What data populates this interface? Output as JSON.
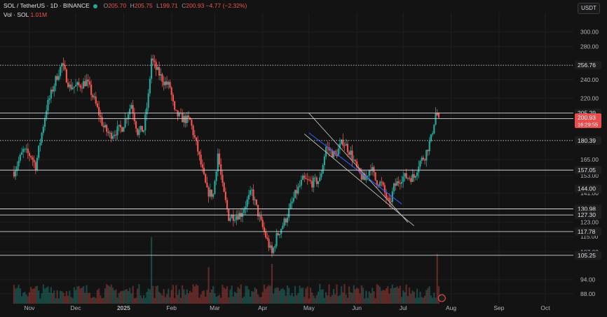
{
  "header": {
    "symbol": "SOL / TetherUS · 1D · BINANCE",
    "o_label": "O",
    "o_value": "205.70",
    "h_label": "H",
    "h_value": "205.75",
    "l_label": "L",
    "l_value": "199.71",
    "c_label": "C",
    "c_value": "200.93",
    "change": "−4.77 (−2.32%)",
    "vol_label": "Vol · SOL",
    "vol_value": "1.01M",
    "currency": "USDT"
  },
  "colors": {
    "background": "#131313",
    "up": "#26a69a",
    "down": "#ef5350",
    "grid": "#1f1f1f",
    "axis_text": "#b2b5be",
    "hline": "#d1d4dc",
    "badge_bg": "#1e1e1e",
    "price_badge_bg": "#e94c4c",
    "channel": "#bfbfbf",
    "midline": "#2962ff"
  },
  "chart_data": {
    "type": "candlestick",
    "y_scale": "log",
    "ylim": [
      84,
      320
    ],
    "x_ticks": [
      "Nov",
      "Dec",
      "2025",
      "Feb",
      "Mar",
      "Apr",
      "May",
      "Jun",
      "Jul",
      "Aug",
      "Sep",
      "Oct"
    ],
    "x_tick_dates": [
      "2024-11-01",
      "2024-12-01",
      "2025-01-01",
      "2025-02-01",
      "2025-03-01",
      "2025-04-01",
      "2025-05-01",
      "2025-06-01",
      "2025-07-01",
      "2025-08-01",
      "2025-09-01",
      "2025-10-01"
    ],
    "y_ticks": [
      300.0,
      280.0,
      240.0,
      220.0,
      165.0,
      153.0,
      141.0,
      123.0,
      115.0,
      107.0,
      94.0,
      88.0
    ],
    "price_levels": [
      {
        "value": 256.76,
        "style": "dotted"
      },
      {
        "value": 205.29,
        "style": "solid"
      },
      {
        "value": 199.99,
        "style": "solid"
      },
      {
        "value": 180.39,
        "style": "dotted"
      },
      {
        "value": 157.05,
        "style": "solid"
      },
      {
        "value": 144.0,
        "style": "none"
      },
      {
        "value": 130.98,
        "style": "solid"
      },
      {
        "value": 127.3,
        "style": "solid"
      },
      {
        "value": 117.78,
        "style": "solid"
      },
      {
        "value": 105.37,
        "style": "solid"
      },
      {
        "value": 105.25,
        "style": "none"
      }
    ],
    "last_price": {
      "value": "200.93",
      "countdown": "16:29:55"
    },
    "channel": {
      "upper": [
        [
          "2025-05-01",
          205
        ],
        [
          "2025-07-04",
          123
        ]
      ],
      "lower": [
        [
          "2025-04-28",
          186
        ],
        [
          "2025-07-08",
          121
        ]
      ],
      "mid": [
        [
          "2025-05-01",
          187
        ],
        [
          "2025-06-30",
          134
        ]
      ]
    },
    "anchors": [
      [
        "2024-10-22",
        156
      ],
      [
        "2024-10-28",
        172
      ],
      [
        "2024-11-02",
        168
      ],
      [
        "2024-11-05",
        160
      ],
      [
        "2024-11-12",
        210
      ],
      [
        "2024-11-18",
        240
      ],
      [
        "2024-11-22",
        258
      ],
      [
        "2024-11-27",
        232
      ],
      [
        "2024-12-03",
        233
      ],
      [
        "2024-12-08",
        238
      ],
      [
        "2024-12-13",
        218
      ],
      [
        "2024-12-19",
        192
      ],
      [
        "2024-12-23",
        185
      ],
      [
        "2024-12-31",
        192
      ],
      [
        "2025-01-06",
        214
      ],
      [
        "2025-01-10",
        188
      ],
      [
        "2025-01-14",
        190
      ],
      [
        "2025-01-17",
        222
      ],
      [
        "2025-01-19",
        265
      ],
      [
        "2025-01-22",
        252
      ],
      [
        "2025-01-27",
        238
      ],
      [
        "2025-01-31",
        232
      ],
      [
        "2025-02-03",
        205
      ],
      [
        "2025-02-08",
        200
      ],
      [
        "2025-02-13",
        198
      ],
      [
        "2025-02-18",
        172
      ],
      [
        "2025-02-24",
        142
      ],
      [
        "2025-02-28",
        140
      ],
      [
        "2025-03-03",
        170
      ],
      [
        "2025-03-06",
        145
      ],
      [
        "2025-03-10",
        126
      ],
      [
        "2025-03-18",
        128
      ],
      [
        "2025-03-25",
        142
      ],
      [
        "2025-03-30",
        125
      ],
      [
        "2025-04-07",
        106
      ],
      [
        "2025-04-10",
        115
      ],
      [
        "2025-04-16",
        125
      ],
      [
        "2025-04-22",
        140
      ],
      [
        "2025-04-27",
        150
      ],
      [
        "2025-05-03",
        148
      ],
      [
        "2025-05-08",
        150
      ],
      [
        "2025-05-12",
        175
      ],
      [
        "2025-05-18",
        168
      ],
      [
        "2025-05-23",
        180
      ],
      [
        "2025-05-28",
        170
      ],
      [
        "2025-06-02",
        155
      ],
      [
        "2025-06-06",
        150
      ],
      [
        "2025-06-10",
        160
      ],
      [
        "2025-06-13",
        150
      ],
      [
        "2025-06-17",
        147
      ],
      [
        "2025-06-22",
        133
      ],
      [
        "2025-06-25",
        145
      ],
      [
        "2025-06-30",
        152
      ],
      [
        "2025-07-03",
        152
      ],
      [
        "2025-07-08",
        152
      ],
      [
        "2025-07-11",
        162
      ],
      [
        "2025-07-15",
        168
      ],
      [
        "2025-07-19",
        182
      ],
      [
        "2025-07-22",
        205
      ],
      [
        "2025-07-24",
        201
      ]
    ],
    "volume_spikes": [
      [
        "2025-01-19",
        1.0
      ],
      [
        "2025-02-25",
        0.55
      ],
      [
        "2025-04-07",
        0.6
      ],
      [
        "2025-07-23",
        0.75
      ]
    ]
  }
}
